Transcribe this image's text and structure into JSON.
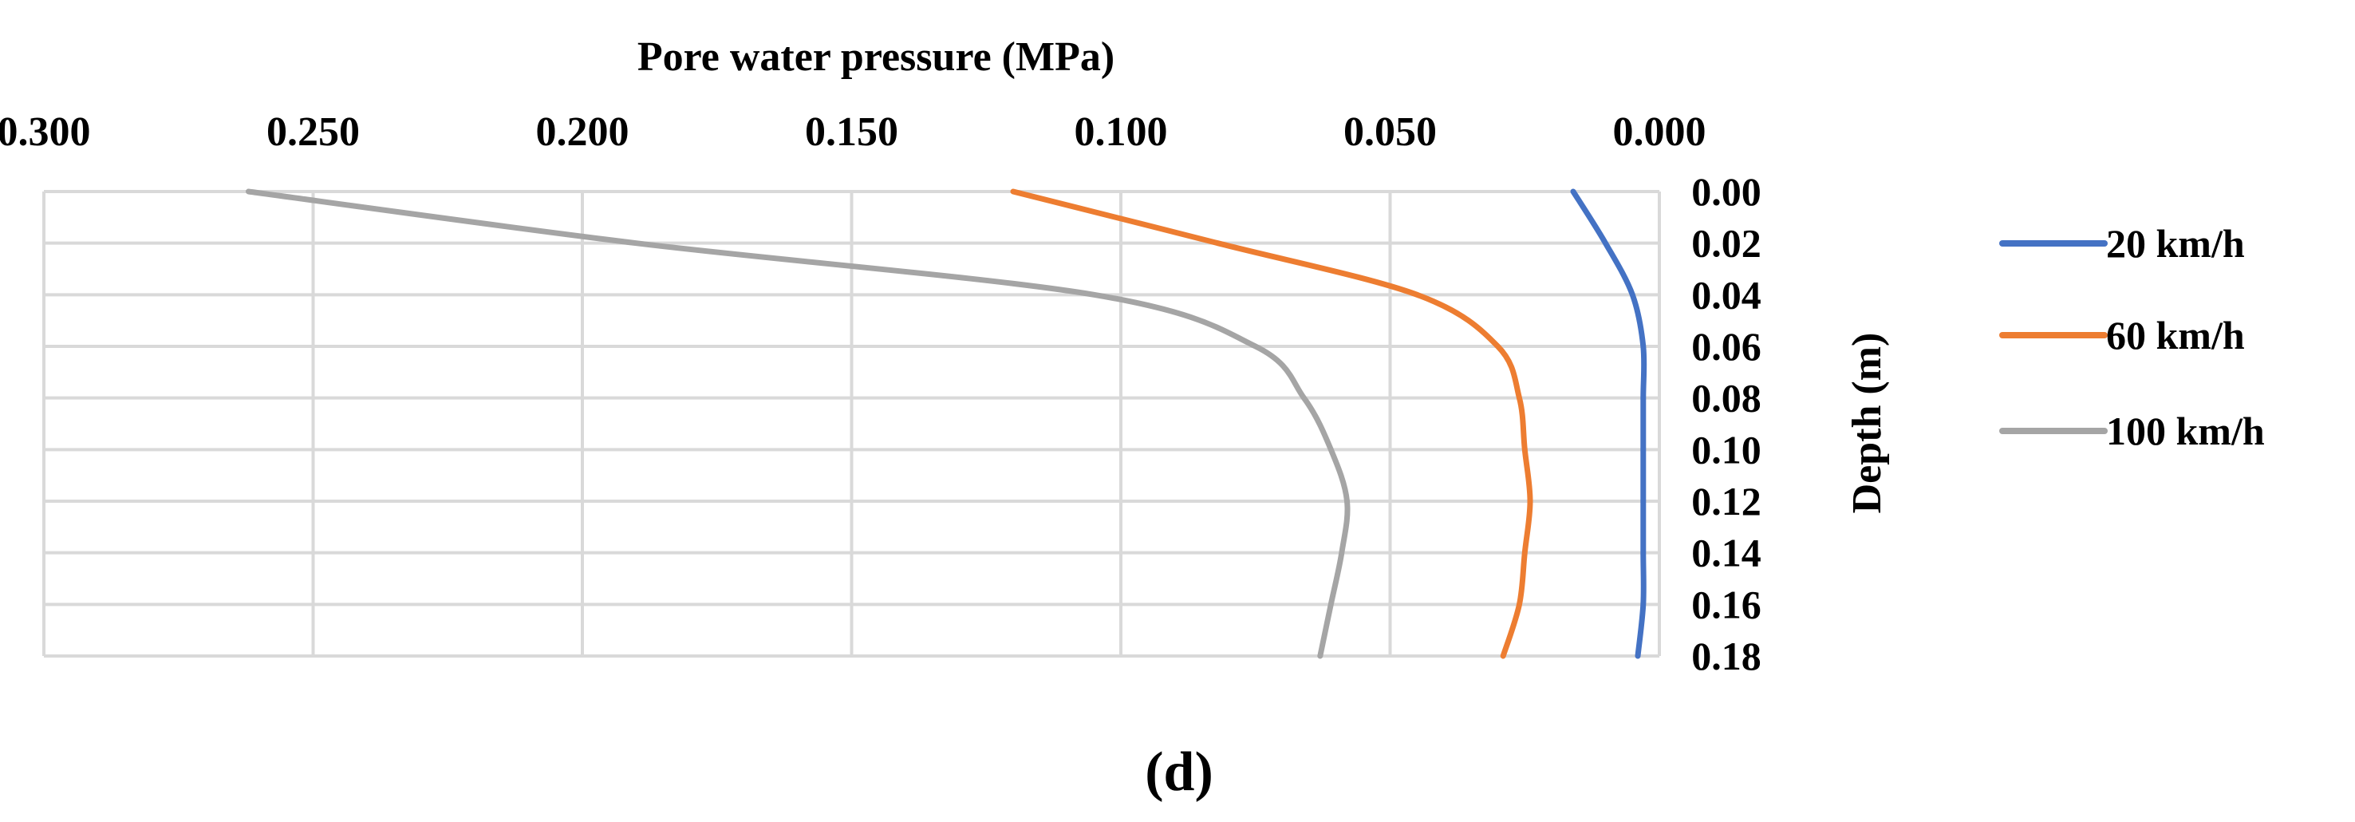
{
  "chart_data": {
    "type": "line",
    "title": "Pore water pressure (MPa)",
    "xlabel": "Pore water pressure (MPa)",
    "ylabel": "Depth (m)",
    "xlim": [
      0.3,
      0.0
    ],
    "x_reversed": true,
    "x_axis_position": "top",
    "ylim": [
      0.0,
      0.18
    ],
    "y_reversed": true,
    "y_axis_position": "right",
    "x_ticks": [
      0.3,
      0.25,
      0.2,
      0.15,
      0.1,
      0.05,
      0.0
    ],
    "x_tick_labels": [
      "0.300",
      "0.250",
      "0.200",
      "0.150",
      "0.100",
      "0.050",
      "0.000"
    ],
    "y_ticks": [
      0.0,
      0.02,
      0.04,
      0.06,
      0.08,
      0.1,
      0.12,
      0.14,
      0.16,
      0.18
    ],
    "y_tick_labels": [
      "0.00",
      "0.02",
      "0.04",
      "0.06",
      "0.08",
      "0.10",
      "0.12",
      "0.14",
      "0.16",
      "0.18"
    ],
    "grid": true,
    "legend_position": "right",
    "depth": [
      0.0,
      0.02,
      0.04,
      0.06,
      0.08,
      0.1,
      0.12,
      0.14,
      0.16,
      0.18
    ],
    "series": [
      {
        "name": "20 km/h",
        "color": "#4472c4",
        "values": [
          0.016,
          0.01,
          0.005,
          0.003,
          0.003,
          0.003,
          0.003,
          0.003,
          0.003,
          0.004
        ]
      },
      {
        "name": "60 km/h",
        "color": "#ed7d31",
        "values": [
          0.12,
          0.082,
          0.045,
          0.03,
          0.026,
          0.025,
          0.024,
          0.025,
          0.026,
          0.029
        ]
      },
      {
        "name": "100 km/h",
        "color": "#a5a5a5",
        "values": [
          0.262,
          0.19,
          0.105,
          0.075,
          0.066,
          0.061,
          0.058,
          0.059,
          0.061,
          0.063
        ]
      }
    ]
  },
  "caption": "(d)"
}
